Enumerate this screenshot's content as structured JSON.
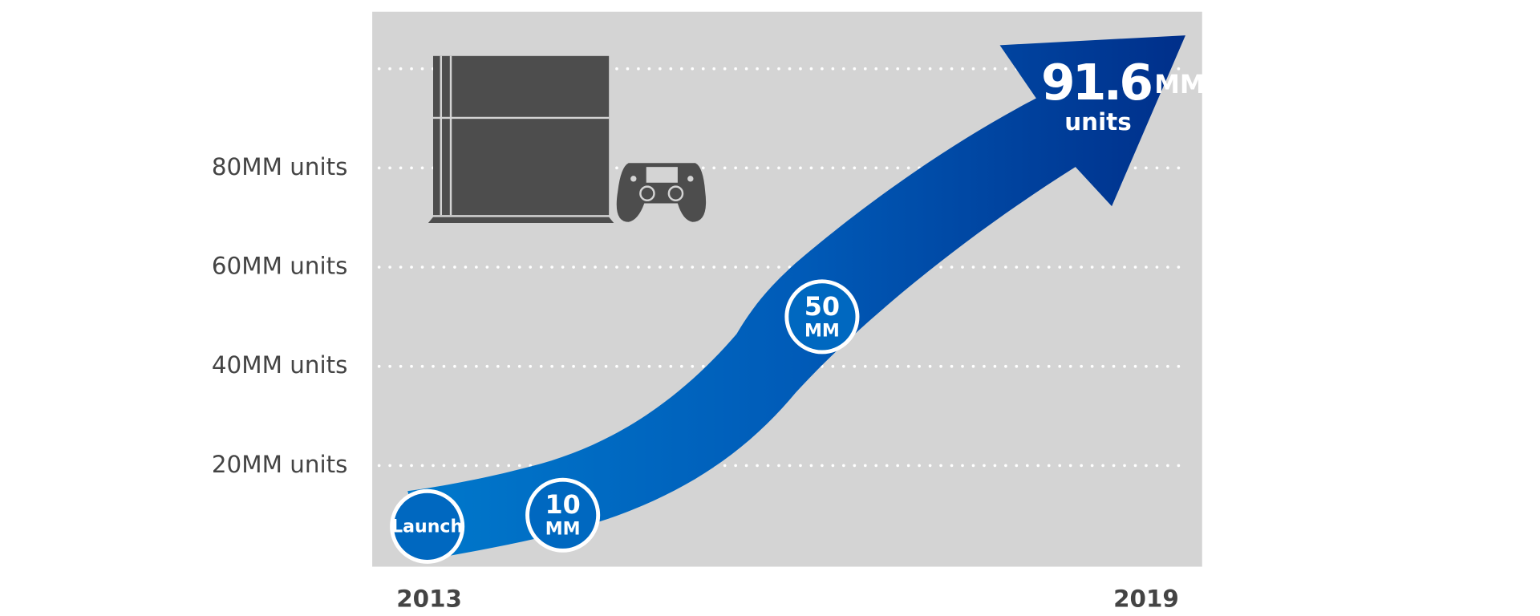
{
  "chart_data": {
    "type": "milestone_arrow",
    "ylim": [
      0,
      112
    ],
    "yticks": [
      {
        "value": 20,
        "label": "20MM units"
      },
      {
        "value": 40,
        "label": "40MM units"
      },
      {
        "value": 60,
        "label": "60MM units"
      },
      {
        "value": 80,
        "label": "80MM units"
      }
    ],
    "ygrid": [
      20,
      40,
      60,
      80,
      100
    ],
    "x_labels": [
      "2013",
      "2019"
    ],
    "milestones": [
      {
        "label": "Launch"
      },
      {
        "value": 10,
        "value_label": "10",
        "unit": "MM"
      },
      {
        "value": 50,
        "value_label": "50",
        "unit": "MM"
      }
    ],
    "final": {
      "value": 91.6,
      "value_label": "91.6",
      "unit": "MM",
      "unit_label": "units"
    },
    "color": "#0068c0"
  }
}
